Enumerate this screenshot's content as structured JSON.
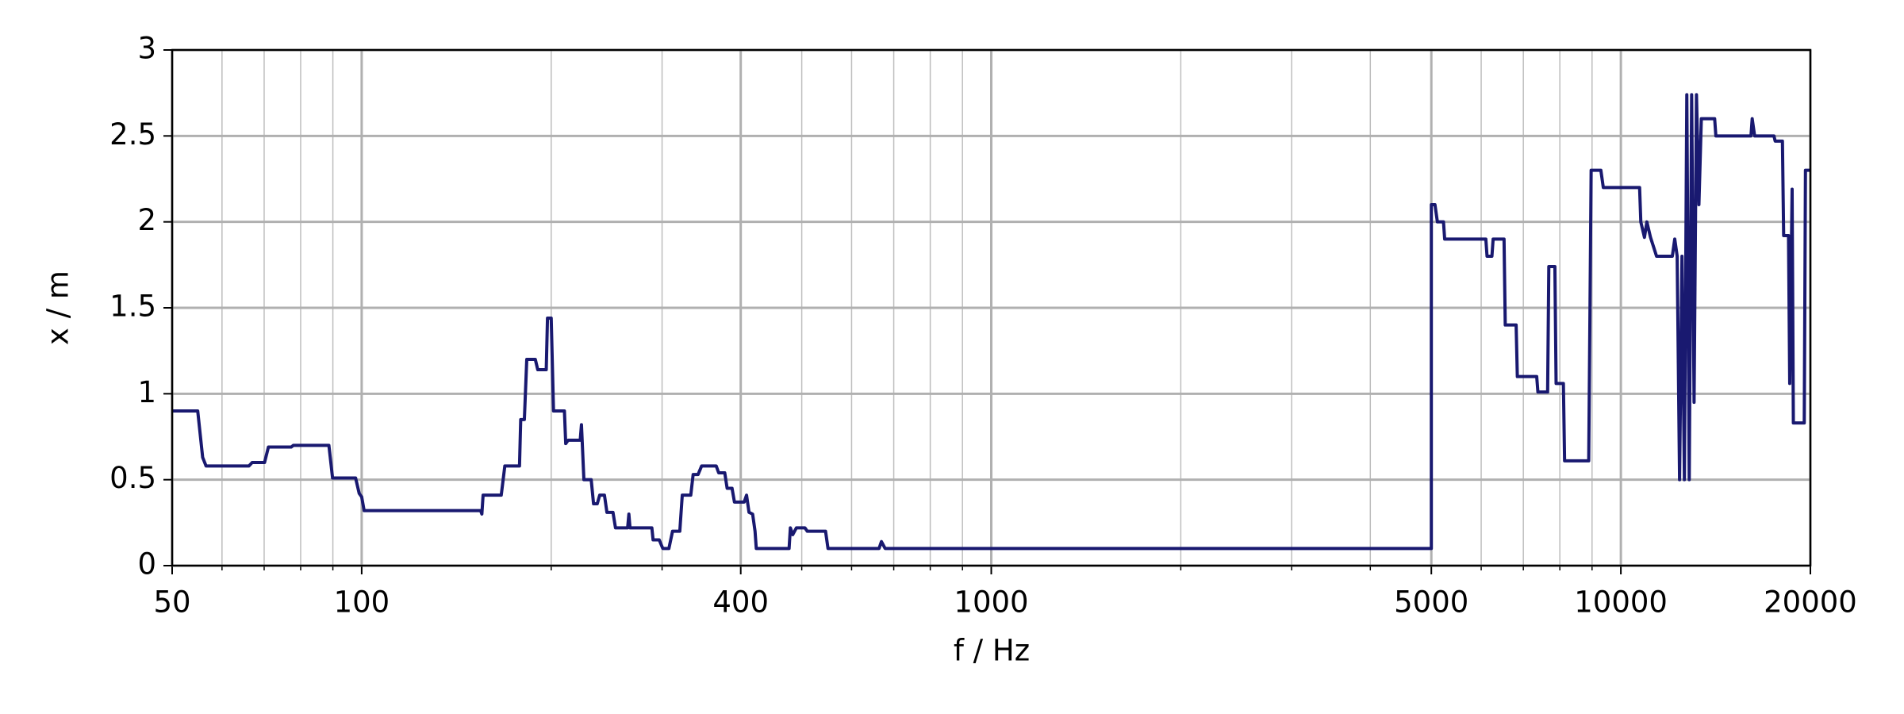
{
  "chart_data": {
    "type": "line",
    "xlabel": "f / Hz",
    "ylabel": "x / m",
    "xscale": "log",
    "grid": true,
    "color": "#191970",
    "xlim": [
      50,
      20000
    ],
    "ylim": [
      0,
      3
    ],
    "xticks": [
      50,
      100,
      400,
      1000,
      5000,
      10000,
      20000
    ],
    "xminorticks": [
      60,
      70,
      80,
      90,
      200,
      300,
      500,
      600,
      700,
      800,
      900,
      2000,
      3000,
      4000,
      6000,
      7000,
      8000,
      9000
    ],
    "yticks": [
      0,
      0.5,
      1,
      1.5,
      2,
      2.5,
      3
    ],
    "x": [
      50,
      54.9,
      55.9,
      56.6,
      66.2,
      67.0,
      70.1,
      71.1,
      77.3,
      77.9,
      88.7,
      89.9,
      97.8,
      99.1,
      100,
      100.9,
      154.5,
      155.2,
      155.9,
      166.6,
      168.8,
      178.1,
      178.9,
      181.3,
      182.9,
      188.7,
      190.4,
      196.4,
      197.3,
      200,
      201.7,
      209.9,
      210.9,
      212.8,
      222.4,
      223.4,
      225.4,
      231.5,
      233.5,
      236.7,
      238.8,
      243.0,
      245.2,
      250.7,
      253.0,
      264.5,
      265.7,
      266.8,
      289.0,
      290.3,
      296.9,
      300.8,
      307.6,
      311.7,
      320.1,
      323.0,
      333.2,
      336.1,
      342.2,
      346.7,
      365.7,
      369.0,
      377.3,
      380.6,
      387.5,
      390.9,
      405.1,
      408.6,
      412.3,
      417.8,
      421.5,
      423.4,
      477.4,
      479.6,
      483.8,
      490.3,
      505.8,
      510.3,
      545.5,
      550.4,
      663.4,
      669.2,
      678.2,
      5000,
      5000,
      5067,
      5112,
      5227,
      5250,
      6103,
      6130,
      6240,
      6268,
      6523,
      6552,
      6818,
      6848,
      7351,
      7383,
      7650,
      7684,
      7856,
      7891,
      8104,
      8140,
      8891,
      8970,
      9295,
      9378,
      10709,
      10757,
      10901,
      10998,
      11145,
      11395,
      12071,
      12178,
      12287,
      12395,
      12505,
      12616,
      12728,
      12841,
      12955,
      13070,
      13186,
      13304,
      13422,
      14092,
      14155,
      16094,
      16166,
      16310,
      17505,
      17583,
      18056,
      18137,
      18462,
      18544,
      18708,
      18792,
      19557,
      19643,
      20000
    ],
    "values": [
      0.9,
      0.9,
      0.63,
      0.58,
      0.58,
      0.6,
      0.6,
      0.69,
      0.69,
      0.7,
      0.7,
      0.51,
      0.51,
      0.42,
      0.4,
      0.32,
      0.32,
      0.3,
      0.41,
      0.41,
      0.58,
      0.58,
      0.85,
      0.85,
      1.2,
      1.2,
      1.14,
      1.14,
      1.44,
      1.44,
      0.9,
      0.9,
      0.71,
      0.73,
      0.73,
      0.82,
      0.5,
      0.5,
      0.36,
      0.36,
      0.41,
      0.41,
      0.31,
      0.31,
      0.22,
      0.22,
      0.3,
      0.22,
      0.22,
      0.15,
      0.15,
      0.1,
      0.1,
      0.2,
      0.2,
      0.41,
      0.41,
      0.53,
      0.53,
      0.58,
      0.58,
      0.54,
      0.54,
      0.45,
      0.45,
      0.37,
      0.37,
      0.41,
      0.31,
      0.3,
      0.2,
      0.1,
      0.1,
      0.22,
      0.18,
      0.22,
      0.22,
      0.2,
      0.2,
      0.1,
      0.1,
      0.14,
      0.1,
      0.1,
      2.1,
      2.1,
      2.0,
      2.0,
      1.9,
      1.9,
      1.8,
      1.8,
      1.9,
      1.9,
      1.4,
      1.4,
      1.1,
      1.1,
      1.01,
      1.01,
      1.74,
      1.74,
      1.06,
      1.06,
      0.61,
      0.61,
      2.3,
      2.3,
      2.2,
      2.2,
      2.0,
      1.91,
      2.0,
      1.91,
      1.8,
      1.8,
      1.9,
      1.8,
      0.5,
      1.8,
      0.5,
      2.74,
      0.5,
      2.74,
      0.95,
      2.74,
      2.1,
      2.6,
      2.6,
      2.5,
      2.5,
      2.6,
      2.5,
      2.5,
      2.47,
      2.47,
      1.92,
      1.92,
      1.06,
      2.19,
      0.83,
      0.83,
      2.3,
      2.3
    ]
  }
}
